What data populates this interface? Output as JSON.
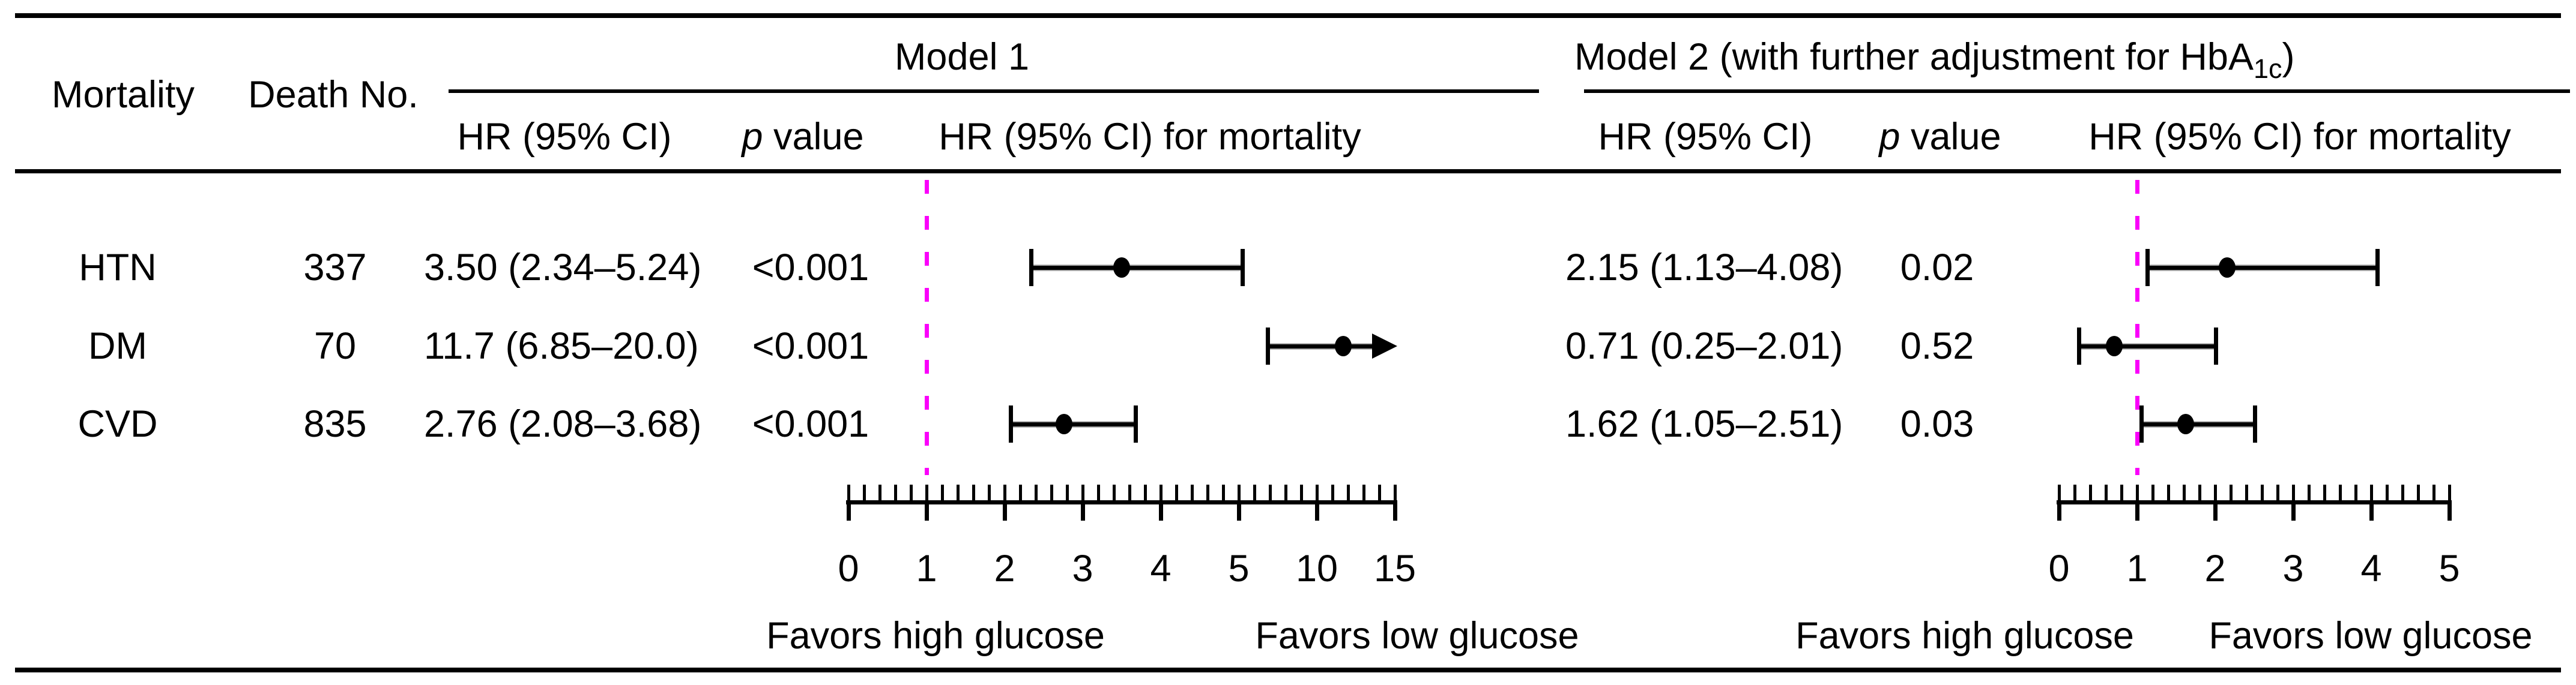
{
  "table": {
    "col_mortality": "Mortality",
    "col_death_no": "Death No.",
    "model1_title": "Model 1",
    "model2_title_prefix": "Model 2 (with further adjustment for HbA",
    "model2_title_sub": "1c",
    "model2_title_suffix": ")",
    "hr_ci_label": "HR (95% CI)",
    "p_label_italic": "p",
    "p_label_rest": " value",
    "hr_ci_mortality_label": "HR (95% CI) for mortality"
  },
  "footer": {
    "model1_favors_left": "Favors high glucose",
    "model1_favors_right": "Favors low glucose",
    "model2_favors_left": "Favors high glucose",
    "model2_favors_right": "Favors low glucose"
  },
  "colors": {
    "reference_line": "#FA00FA",
    "ink": "#000000",
    "ci_halo": "#b0b0b0"
  },
  "chart_data": {
    "type": "forest",
    "title": "",
    "rows": [
      {
        "mortality": "HTN",
        "death_no": "337",
        "model1": {
          "hr": 3.5,
          "lo": 2.34,
          "hi": 5.24,
          "hr_text": "3.50 (2.34–5.24)",
          "p": "<0.001"
        },
        "model2": {
          "hr": 2.15,
          "lo": 1.13,
          "hi": 4.08,
          "hr_text": "2.15 (1.13–4.08)",
          "p": "0.02"
        }
      },
      {
        "mortality": "DM",
        "death_no": "70",
        "model1": {
          "hr": 11.7,
          "lo": 6.85,
          "hi": 20.0,
          "hr_text": "11.7 (6.85–20.0)",
          "p": "<0.001",
          "ci_exceeds_axis": true
        },
        "model2": {
          "hr": 0.71,
          "lo": 0.25,
          "hi": 2.01,
          "hr_text": "0.71 (0.25–2.01)",
          "p": "0.52"
        }
      },
      {
        "mortality": "CVD",
        "death_no": "835",
        "model1": {
          "hr": 2.76,
          "lo": 2.08,
          "hi": 3.68,
          "hr_text": "2.76 (2.08–3.68)",
          "p": "<0.001"
        },
        "model2": {
          "hr": 1.62,
          "lo": 1.05,
          "hi": 2.51,
          "hr_text": "1.62 (1.05–2.51)",
          "p": "0.03"
        }
      }
    ],
    "model1_axis": {
      "ticks": [
        0,
        1,
        2,
        3,
        4,
        5,
        10,
        15
      ],
      "linear_until": 5,
      "reference_line": 1,
      "note": "scale compressed above 5"
    },
    "model2_axis": {
      "ticks": [
        0,
        1,
        2,
        3,
        4,
        5
      ],
      "reference_line": 1
    },
    "legend_position": "none",
    "grid": false
  }
}
